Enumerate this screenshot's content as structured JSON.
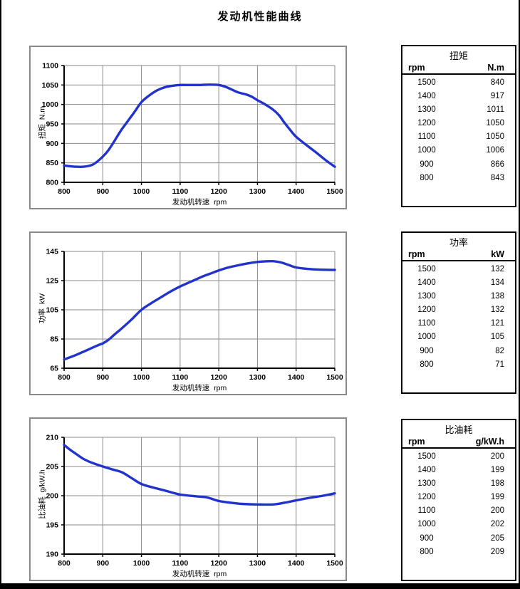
{
  "page": {
    "title": "发动机性能曲线"
  },
  "tables": [
    {
      "title": "扭矩",
      "col1": "rpm",
      "col2": "N.m",
      "rows": [
        [
          "1500",
          "840"
        ],
        [
          "1400",
          "917"
        ],
        [
          "1300",
          "1011"
        ],
        [
          "1200",
          "1050"
        ],
        [
          "1100",
          "1050"
        ],
        [
          "1000",
          "1006"
        ],
        [
          "900",
          "866"
        ],
        [
          "800",
          "843"
        ]
      ]
    },
    {
      "title": "功率",
      "col1": "rpm",
      "col2": "kW",
      "rows": [
        [
          "1500",
          "132"
        ],
        [
          "1400",
          "134"
        ],
        [
          "1300",
          "138"
        ],
        [
          "1200",
          "132"
        ],
        [
          "1100",
          "121"
        ],
        [
          "1000",
          "105"
        ],
        [
          "900",
          "82"
        ],
        [
          "800",
          "71"
        ]
      ]
    },
    {
      "title": "比油耗",
      "col1": "rpm",
      "col2": "g/kW.h",
      "rows": [
        [
          "1500",
          "200"
        ],
        [
          "1400",
          "199"
        ],
        [
          "1300",
          "198"
        ],
        [
          "1200",
          "199"
        ],
        [
          "1100",
          "200"
        ],
        [
          "1000",
          "202"
        ],
        [
          "900",
          "205"
        ],
        [
          "800",
          "209"
        ]
      ]
    }
  ],
  "chart_data": [
    {
      "type": "line",
      "name": "torque",
      "xlabel": "发动机转速  rpm",
      "ylabel": "扭矩  N.m",
      "xlim": [
        800,
        1500
      ],
      "ylim": [
        800,
        1100
      ],
      "xticks": [
        800,
        900,
        1000,
        1100,
        1200,
        1300,
        1400,
        1500
      ],
      "yticks": [
        800,
        850,
        900,
        950,
        1000,
        1050,
        1100
      ],
      "grid": true,
      "line_color": "#2233cc",
      "grid_color": "#8a8a8a",
      "points": {
        "x": [
          800,
          900,
          1000,
          1100,
          1200,
          1300,
          1400,
          1500
        ],
        "y": [
          843,
          866,
          1006,
          1050,
          1050,
          1011,
          917,
          840
        ]
      },
      "curve_trace": [
        [
          800,
          843
        ],
        [
          825,
          840.5
        ],
        [
          850,
          840
        ],
        [
          875,
          846
        ],
        [
          900,
          866
        ],
        [
          915,
          883
        ],
        [
          930,
          906
        ],
        [
          945,
          930
        ],
        [
          960,
          951
        ],
        [
          980,
          978
        ],
        [
          1000,
          1006
        ],
        [
          1020,
          1023
        ],
        [
          1040,
          1036
        ],
        [
          1060,
          1044
        ],
        [
          1080,
          1048
        ],
        [
          1100,
          1050
        ],
        [
          1125,
          1050
        ],
        [
          1150,
          1050
        ],
        [
          1175,
          1051
        ],
        [
          1200,
          1050
        ],
        [
          1215,
          1046
        ],
        [
          1230,
          1040
        ],
        [
          1250,
          1031
        ],
        [
          1270,
          1026
        ],
        [
          1285,
          1020
        ],
        [
          1300,
          1011
        ],
        [
          1320,
          1000
        ],
        [
          1340,
          987
        ],
        [
          1355,
          973
        ],
        [
          1370,
          953
        ],
        [
          1385,
          934
        ],
        [
          1400,
          917
        ],
        [
          1425,
          897
        ],
        [
          1450,
          878
        ],
        [
          1475,
          858
        ],
        [
          1500,
          840
        ]
      ]
    },
    {
      "type": "line",
      "name": "power",
      "xlabel": "发动机转速  rpm",
      "ylabel": "功率  kW",
      "xlim": [
        800,
        1500
      ],
      "ylim": [
        65,
        145
      ],
      "xticks": [
        800,
        900,
        1000,
        1100,
        1200,
        1300,
        1400,
        1500
      ],
      "yticks": [
        65,
        85,
        105,
        125,
        145
      ],
      "grid": true,
      "line_color": "#2233cc",
      "grid_color": "#8a8a8a",
      "points": {
        "x": [
          800,
          900,
          1000,
          1100,
          1200,
          1300,
          1400,
          1500
        ],
        "y": [
          71,
          82,
          105,
          121,
          132,
          138,
          134,
          132
        ]
      },
      "curve_trace": [
        [
          800,
          71
        ],
        [
          830,
          74
        ],
        [
          860,
          77.5
        ],
        [
          890,
          81
        ],
        [
          900,
          82
        ],
        [
          915,
          84.5
        ],
        [
          930,
          88
        ],
        [
          950,
          92.5
        ],
        [
          975,
          98.5
        ],
        [
          1000,
          105
        ],
        [
          1025,
          109.5
        ],
        [
          1050,
          113.5
        ],
        [
          1075,
          117.5
        ],
        [
          1100,
          121
        ],
        [
          1130,
          124.5
        ],
        [
          1160,
          128
        ],
        [
          1180,
          130
        ],
        [
          1200,
          132
        ],
        [
          1225,
          134
        ],
        [
          1250,
          135.5
        ],
        [
          1275,
          136.8
        ],
        [
          1300,
          137.8
        ],
        [
          1320,
          138.2
        ],
        [
          1340,
          138.3
        ],
        [
          1360,
          137.5
        ],
        [
          1380,
          135.8
        ],
        [
          1400,
          134
        ],
        [
          1430,
          133
        ],
        [
          1460,
          132.5
        ],
        [
          1500,
          132.3
        ]
      ]
    },
    {
      "type": "line",
      "name": "specific-fuel-consumption",
      "xlabel": "发动机转速  rpm",
      "ylabel": "比油耗  g/kW.h",
      "xlim": [
        800,
        1500
      ],
      "ylim": [
        190,
        210
      ],
      "xticks": [
        800,
        900,
        1000,
        1100,
        1200,
        1300,
        1400,
        1500
      ],
      "yticks": [
        190,
        195,
        200,
        205,
        210
      ],
      "grid": true,
      "line_color": "#2233cc",
      "grid_color": "#8a8a8a",
      "points": {
        "x": [
          800,
          900,
          1000,
          1100,
          1200,
          1300,
          1400,
          1500
        ],
        "y": [
          209,
          205,
          202,
          200,
          199,
          198,
          199,
          200
        ]
      },
      "curve_trace": [
        [
          800,
          208.7
        ],
        [
          815,
          207.9
        ],
        [
          830,
          207.2
        ],
        [
          850,
          206.3
        ],
        [
          870,
          205.7
        ],
        [
          900,
          205
        ],
        [
          925,
          204.5
        ],
        [
          950,
          204
        ],
        [
          975,
          203
        ],
        [
          1000,
          202
        ],
        [
          1030,
          201.4
        ],
        [
          1060,
          200.9
        ],
        [
          1100,
          200.2
        ],
        [
          1140,
          199.9
        ],
        [
          1170,
          199.7
        ],
        [
          1200,
          199.1
        ],
        [
          1230,
          198.8
        ],
        [
          1260,
          198.6
        ],
        [
          1300,
          198.5
        ],
        [
          1340,
          198.5
        ],
        [
          1370,
          198.8
        ],
        [
          1400,
          199.2
        ],
        [
          1440,
          199.7
        ],
        [
          1470,
          200
        ],
        [
          1500,
          200.4
        ]
      ]
    }
  ]
}
